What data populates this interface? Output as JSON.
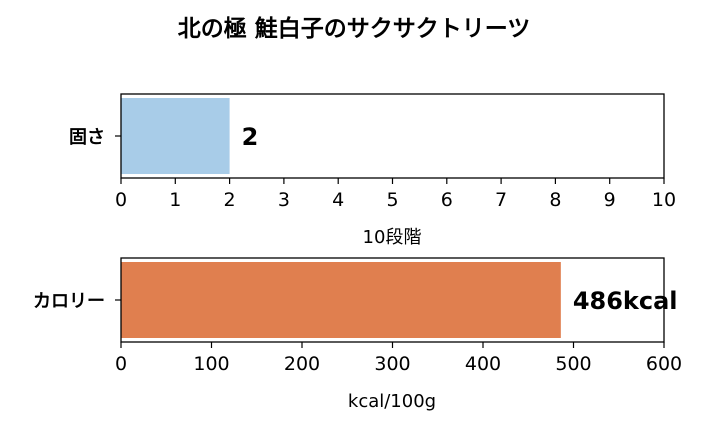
{
  "title": "北の極 鮭白子のサクサクトリーツ",
  "chart_data": [
    {
      "type": "bar",
      "orientation": "horizontal",
      "categories": [
        "固さ"
      ],
      "values": [
        2
      ],
      "value_label": "2",
      "xlabel": "10段階",
      "xlim": [
        0,
        10
      ],
      "xticks": [
        "0",
        "1",
        "2",
        "3",
        "4",
        "5",
        "6",
        "7",
        "8",
        "9",
        "10"
      ],
      "color": "#a8cce8",
      "grid": false
    },
    {
      "type": "bar",
      "orientation": "horizontal",
      "categories": [
        "カロリー"
      ],
      "values": [
        486
      ],
      "value_label": "486kcal",
      "xlabel": "kcal/100g",
      "xlim": [
        0,
        600
      ],
      "xticks": [
        "0",
        "100",
        "200",
        "300",
        "400",
        "500",
        "600"
      ],
      "color": "#e07f4f",
      "grid": false
    }
  ]
}
